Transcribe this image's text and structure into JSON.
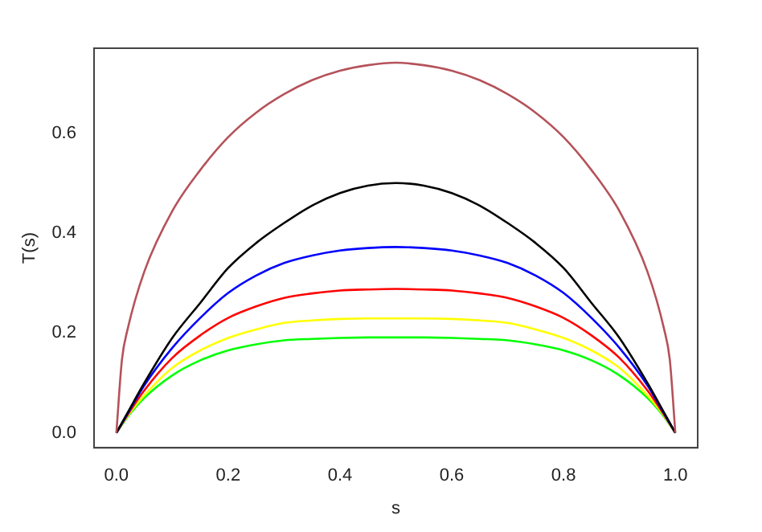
{
  "chart_data": {
    "type": "line",
    "xlabel": "s",
    "ylabel": "T(s)",
    "x": [
      0,
      0.01,
      0.02,
      0.05,
      0.1,
      0.15,
      0.2,
      0.25,
      0.3,
      0.35,
      0.4,
      0.45,
      0.5,
      0.55,
      0.6,
      0.65,
      0.7,
      0.75,
      0.8,
      0.85,
      0.9,
      0.95,
      0.98,
      0.99,
      1
    ],
    "series": [
      {
        "color": "#b5525a",
        "values": [
          0,
          0.147,
          0.207,
          0.323,
          0.444,
          0.526,
          0.592,
          0.641,
          0.678,
          0.706,
          0.725,
          0.736,
          0.741,
          0.736,
          0.725,
          0.706,
          0.678,
          0.641,
          0.592,
          0.526,
          0.444,
          0.323,
          0.207,
          0.147,
          0
        ]
      },
      {
        "color": "#000000",
        "values": [
          0,
          0.02,
          0.04,
          0.1,
          0.19,
          0.26,
          0.33,
          0.38,
          0.42,
          0.455,
          0.48,
          0.495,
          0.5,
          0.495,
          0.48,
          0.455,
          0.42,
          0.38,
          0.33,
          0.26,
          0.19,
          0.1,
          0.04,
          0.02,
          0
        ]
      },
      {
        "color": "#0000ff",
        "values": [
          0,
          0.019,
          0.038,
          0.095,
          0.17,
          0.23,
          0.28,
          0.315,
          0.34,
          0.355,
          0.365,
          0.37,
          0.372,
          0.37,
          0.365,
          0.355,
          0.34,
          0.315,
          0.28,
          0.23,
          0.17,
          0.095,
          0.038,
          0.019,
          0
        ]
      },
      {
        "color": "#ff0000",
        "values": [
          0,
          0.018,
          0.036,
          0.085,
          0.15,
          0.195,
          0.23,
          0.253,
          0.27,
          0.279,
          0.285,
          0.287,
          0.288,
          0.287,
          0.285,
          0.279,
          0.27,
          0.253,
          0.23,
          0.195,
          0.15,
          0.085,
          0.036,
          0.018,
          0
        ]
      },
      {
        "color": "#ffff00",
        "values": [
          0,
          0.017,
          0.034,
          0.075,
          0.13,
          0.165,
          0.19,
          0.207,
          0.22,
          0.225,
          0.228,
          0.229,
          0.229,
          0.229,
          0.228,
          0.225,
          0.22,
          0.207,
          0.19,
          0.165,
          0.13,
          0.075,
          0.034,
          0.017,
          0
        ]
      },
      {
        "color": "#00ff00",
        "values": [
          0,
          0.016,
          0.032,
          0.07,
          0.115,
          0.145,
          0.165,
          0.177,
          0.185,
          0.188,
          0.19,
          0.191,
          0.191,
          0.191,
          0.19,
          0.188,
          0.185,
          0.177,
          0.165,
          0.145,
          0.115,
          0.07,
          0.032,
          0.016,
          0
        ]
      }
    ],
    "xlim": [
      -0.04,
      1.04
    ],
    "ylim": [
      -0.03,
      0.77
    ],
    "xticks": [
      {
        "value": 0,
        "label": "0.0"
      },
      0.2,
      0.4,
      0.6,
      0.8,
      {
        "value": 1,
        "label": "1.0"
      }
    ],
    "yticks": [
      {
        "value": 0,
        "label": "0.0"
      },
      0.2,
      0.4,
      0.6
    ],
    "grid": false,
    "legend": false,
    "marker": "none",
    "line_style": "solid"
  }
}
